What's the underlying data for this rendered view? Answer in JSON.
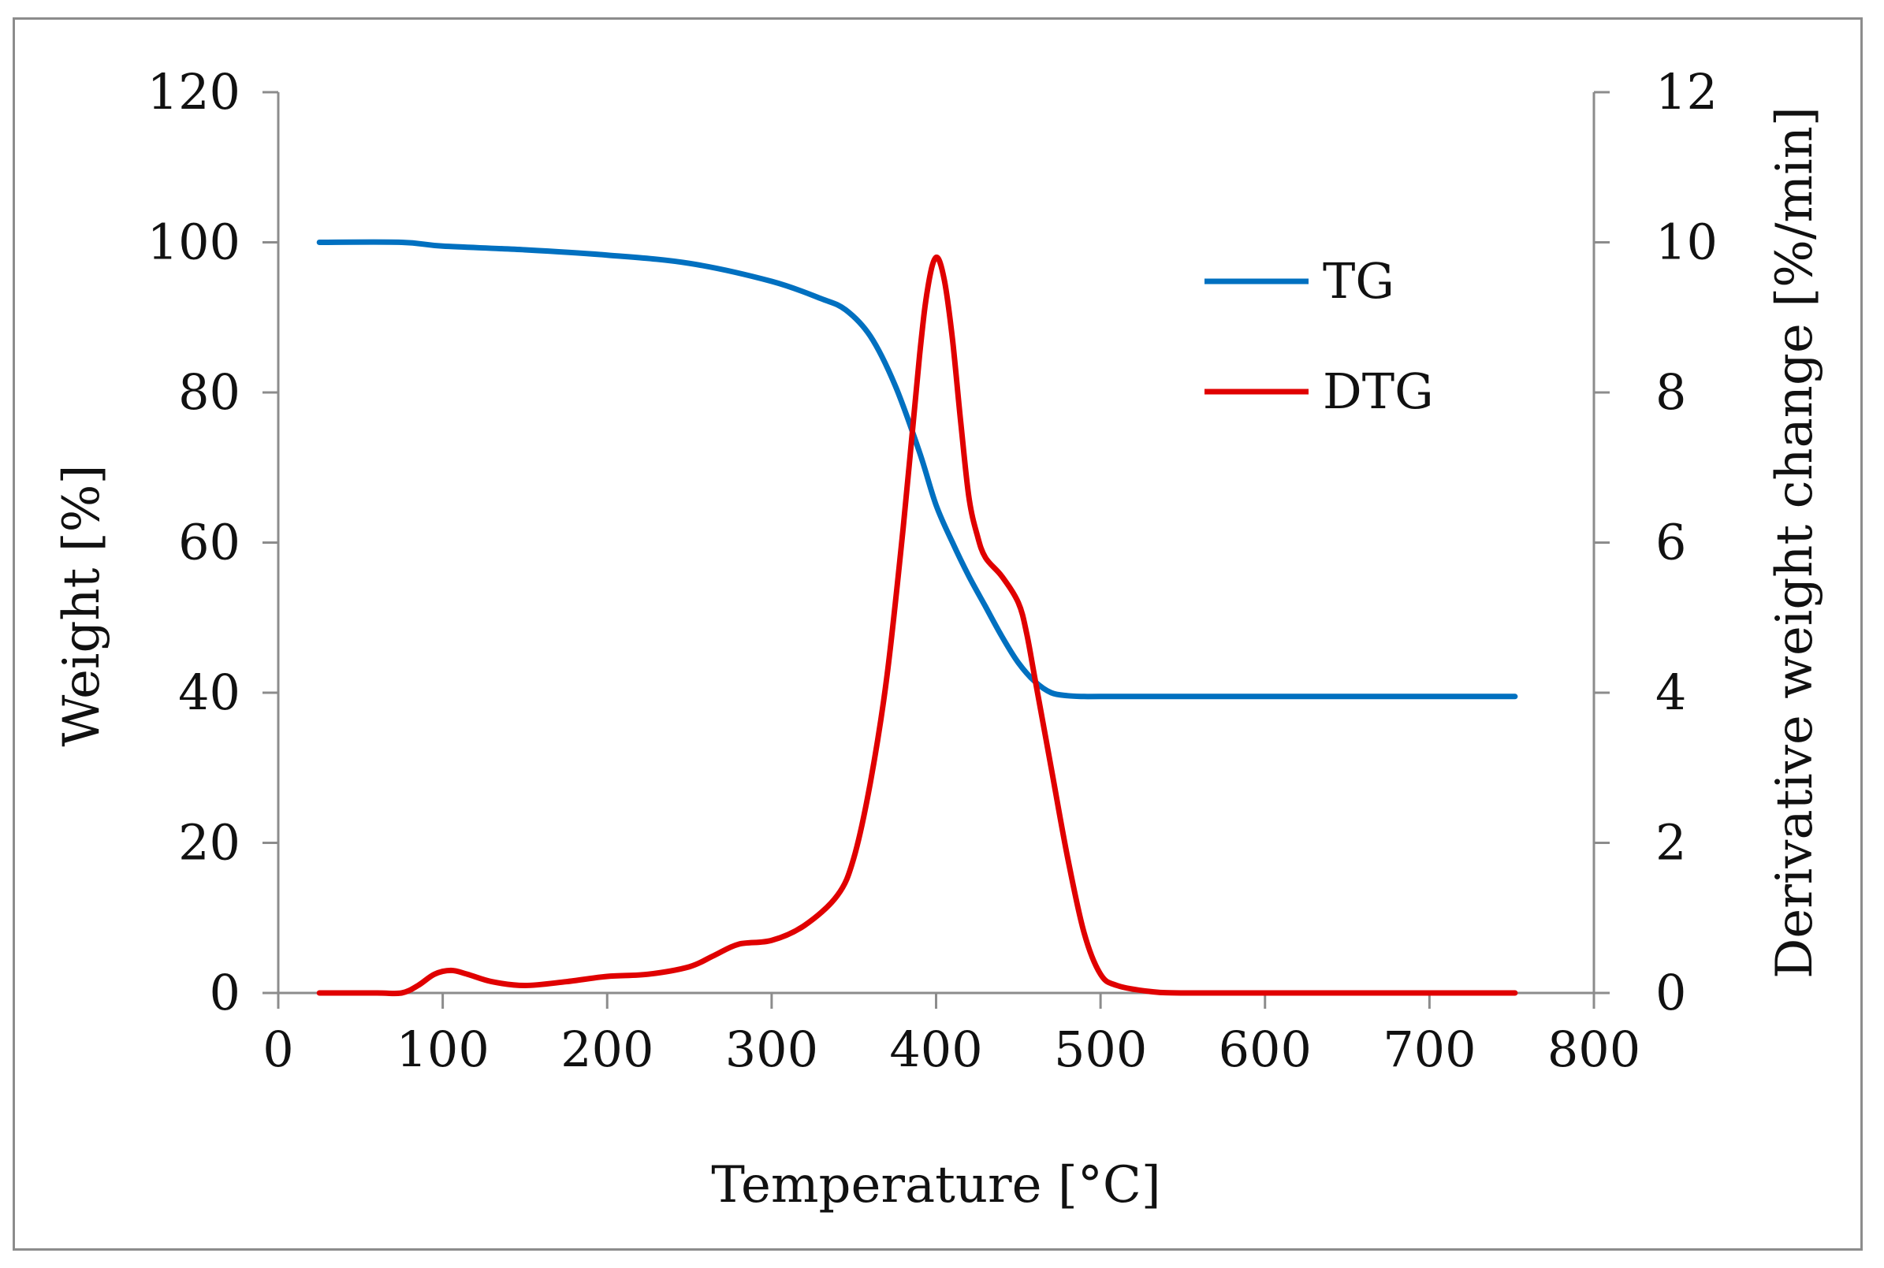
{
  "chart_data": {
    "type": "line",
    "title": "",
    "xlabel": "Temperature [°C]",
    "ylabel": "Weight [%]",
    "y2label": "Derivative weight change [%/min]",
    "xlim": [
      0,
      800
    ],
    "ylim": [
      0,
      120
    ],
    "y2lim": [
      0,
      12
    ],
    "x_ticks": [
      "0",
      "100",
      "200",
      "300",
      "400",
      "500",
      "600",
      "700",
      "800"
    ],
    "y_ticks": [
      "0",
      "20",
      "40",
      "60",
      "80",
      "100",
      "120"
    ],
    "y2_ticks": [
      "0",
      "2",
      "4",
      "6",
      "8",
      "10",
      "12"
    ],
    "grid": false,
    "legend_position": "top-right",
    "series": [
      {
        "name": "TG",
        "axis": "left",
        "color": "#0070c0",
        "x": [
          25,
          75,
          100,
          150,
          200,
          250,
          300,
          330,
          345,
          360,
          375,
          390,
          400,
          410,
          420,
          430,
          440,
          450,
          460,
          470,
          480,
          490,
          500,
          550,
          600,
          650,
          700,
          752
        ],
        "y": [
          100,
          100,
          99.5,
          99,
          98.3,
          97.2,
          94.8,
          92.5,
          91,
          87.5,
          81,
          72,
          65,
          60,
          55.5,
          51.5,
          47.5,
          44,
          41.5,
          40,
          39.6,
          39.5,
          39.5,
          39.5,
          39.5,
          39.5,
          39.5,
          39.5
        ]
      },
      {
        "name": "DTG",
        "axis": "right",
        "color": "#e00000",
        "x": [
          25,
          60,
          75,
          85,
          95,
          105,
          115,
          130,
          150,
          175,
          200,
          225,
          250,
          265,
          280,
          300,
          320,
          340,
          350,
          360,
          370,
          380,
          390,
          395,
          400,
          405,
          410,
          415,
          420,
          425,
          430,
          440,
          450,
          455,
          460,
          470,
          480,
          490,
          500,
          510,
          530,
          550,
          600,
          700,
          752
        ],
        "y": [
          0,
          0,
          0,
          0.1,
          0.25,
          0.3,
          0.25,
          0.15,
          0.1,
          0.15,
          0.22,
          0.25,
          0.35,
          0.5,
          0.65,
          0.7,
          0.9,
          1.3,
          1.8,
          2.8,
          4.2,
          6.2,
          8.5,
          9.4,
          9.8,
          9.5,
          8.7,
          7.6,
          6.6,
          6.1,
          5.8,
          5.55,
          5.2,
          4.8,
          4.2,
          3.0,
          1.8,
          0.8,
          0.25,
          0.1,
          0.02,
          0,
          0,
          0,
          0
        ]
      }
    ]
  }
}
